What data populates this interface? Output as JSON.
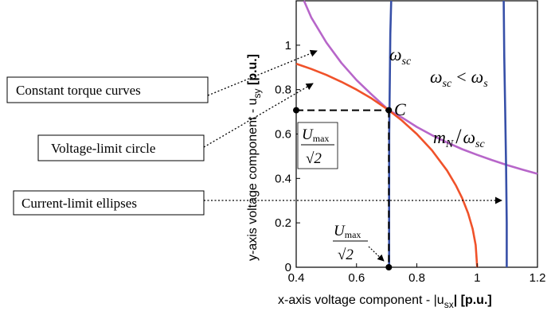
{
  "chart_data": {
    "type": "line",
    "xlabel": "x-axis voltage component - |u",
    "xlabel_sub": "sx",
    "xlabel_end": "| [p.u.]",
    "ylabel": "y-axis voltage component - u",
    "ylabel_sub": "sy",
    "ylabel_end": " [p.u.]",
    "xlim": [
      0.4,
      1.2
    ],
    "ylim": [
      0,
      1.2
    ],
    "xticks": [
      "0.4",
      "0.6",
      "0.8",
      "1",
      "1.2"
    ],
    "yticks": [
      "0",
      "0.2",
      "0.4",
      "0.6",
      "0.8",
      "1"
    ],
    "grid": false,
    "series": [
      {
        "color": "#b766c9",
        "points": [
          [
            0.426,
            1.2
          ],
          [
            0.45,
            1.125
          ],
          [
            0.5,
            1.012
          ],
          [
            0.55,
            0.92
          ],
          [
            0.6,
            0.843
          ],
          [
            0.65,
            0.778
          ],
          [
            0.70711,
            0.70711
          ],
          [
            0.75,
            0.675
          ],
          [
            0.8,
            0.632
          ],
          [
            0.85,
            0.595
          ],
          [
            0.9,
            0.562
          ],
          [
            0.95,
            0.532
          ],
          [
            1.0,
            0.506
          ],
          [
            1.05,
            0.482
          ],
          [
            1.1,
            0.46
          ],
          [
            1.15,
            0.44
          ],
          [
            1.2,
            0.421
          ]
        ]
      },
      {
        "color": "#f0522a",
        "points": [
          [
            0.4,
            0.9165
          ],
          [
            0.45,
            0.893
          ],
          [
            0.5,
            0.866
          ],
          [
            0.55,
            0.835
          ],
          [
            0.6,
            0.8
          ],
          [
            0.65,
            0.76
          ],
          [
            0.70711,
            0.70711
          ],
          [
            0.75,
            0.6614
          ],
          [
            0.8,
            0.6
          ],
          [
            0.85,
            0.5268
          ],
          [
            0.9,
            0.4359
          ],
          [
            0.93,
            0.3676
          ],
          [
            0.95,
            0.3122
          ],
          [
            0.97,
            0.2431
          ],
          [
            0.985,
            0.1726
          ],
          [
            0.995,
            0.0999
          ],
          [
            1.0,
            0.0
          ]
        ]
      },
      {
        "color": "#3750a8",
        "points": [
          [
            0.715,
            1.2
          ],
          [
            0.712,
            1.05
          ],
          [
            0.7105,
            0.85
          ],
          [
            0.7085,
            0.6
          ],
          [
            0.708,
            0.3
          ],
          [
            0.708,
            0.0
          ]
        ]
      },
      {
        "color": "#3750a8",
        "points": [
          [
            1.088,
            1.2
          ],
          [
            1.09,
            0.95
          ],
          [
            1.093,
            0.7
          ],
          [
            1.096,
            0.45
          ],
          [
            1.098,
            0.2
          ],
          [
            1.098,
            0.0
          ]
        ]
      }
    ],
    "point_C": {
      "x": 0.70711,
      "y": 0.70711,
      "label": "C"
    },
    "annotations": {
      "omega_sc": "ω",
      "omega_sc_sub": "sc",
      "ineq_lhs": "ω",
      "ineq_lhs_sub": "sc",
      "ineq_op": "<",
      "ineq_rhs": "ω",
      "ineq_rhs_sub": "s",
      "mN": "m",
      "mN_sub": "N",
      "mN_slash": "/",
      "mN_omega": "ω",
      "mN_omega_sub": "sc",
      "frac_num": "U",
      "frac_num_sub": "max",
      "frac_den": "√2"
    },
    "callouts": [
      {
        "label": "Constant torque curves"
      },
      {
        "label": "Voltage-limit circle"
      },
      {
        "label": "Current-limit ellipses"
      }
    ]
  }
}
